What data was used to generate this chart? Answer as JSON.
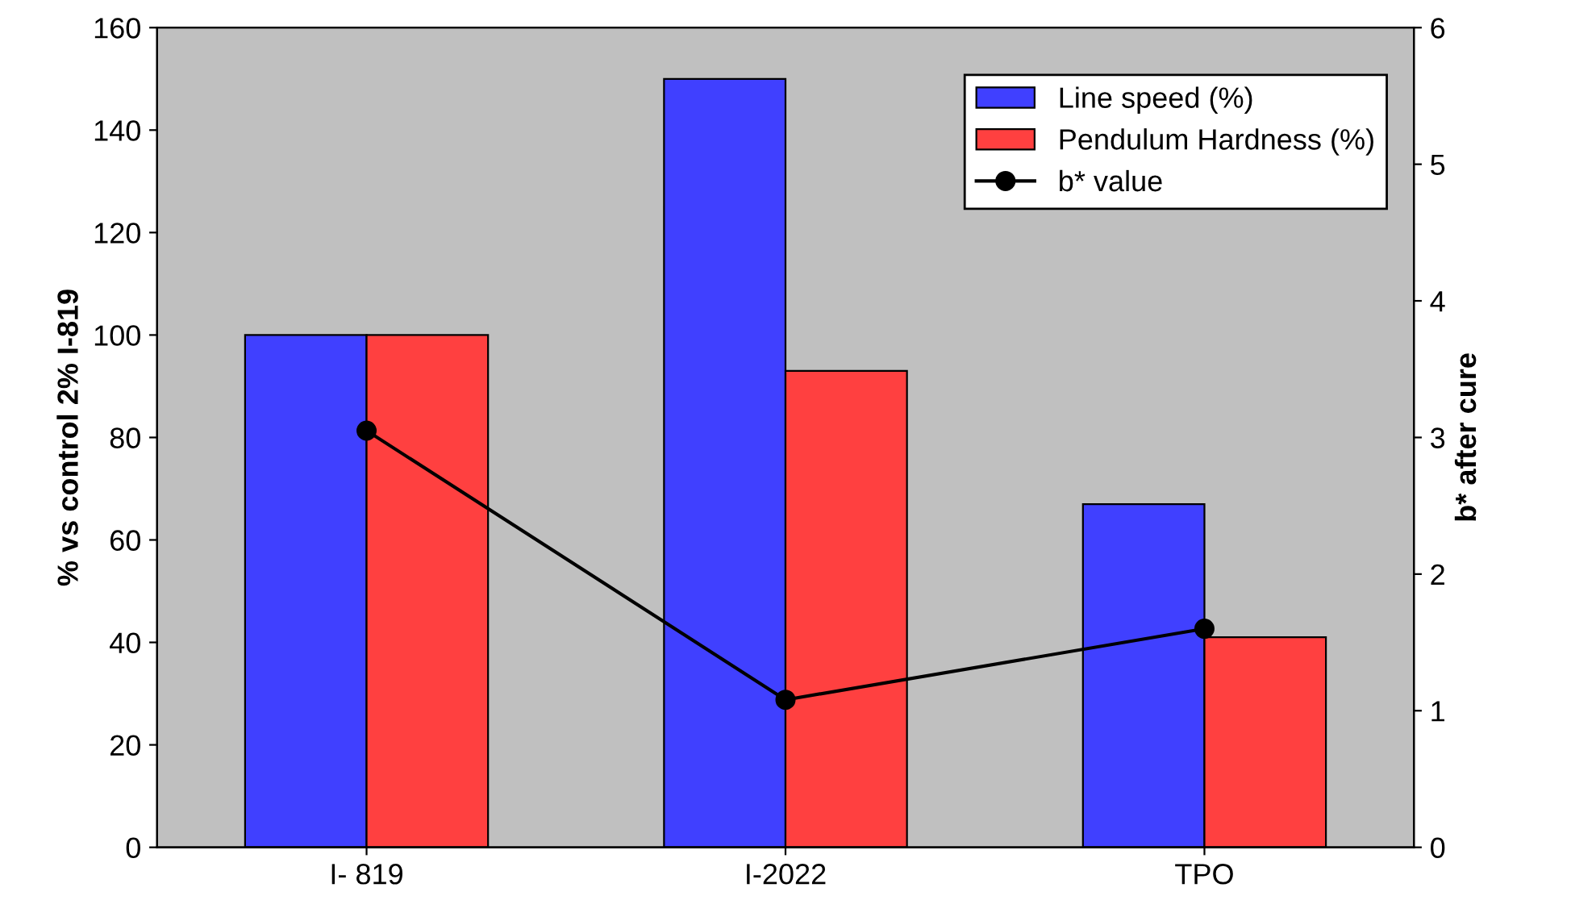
{
  "chart_data": {
    "type": "bar",
    "ylabel": "% vs control 2% I-819",
    "y2label": "b* after cure",
    "categories": [
      "I- 819",
      "I-2022",
      "TPO"
    ],
    "series": [
      {
        "name": "Line speed (%)",
        "color": "#4040ff",
        "values": [
          100,
          150,
          67
        ]
      },
      {
        "name": "Pendulum Hardness (%)",
        "color": "#ff4040",
        "values": [
          100,
          93,
          41
        ]
      },
      {
        "name": "b* value",
        "type": "line",
        "axis": "y2",
        "color": "#000000",
        "marker": "circle",
        "values": [
          3.05,
          1.08,
          1.6
        ]
      }
    ],
    "ylim": [
      0,
      160
    ],
    "yticks": [
      0,
      20,
      40,
      60,
      80,
      100,
      120,
      140,
      160
    ],
    "y2lim": [
      0,
      6
    ],
    "y2ticks": [
      0,
      1,
      2,
      3,
      4,
      5,
      6
    ],
    "legend": "top right",
    "grid": false
  }
}
